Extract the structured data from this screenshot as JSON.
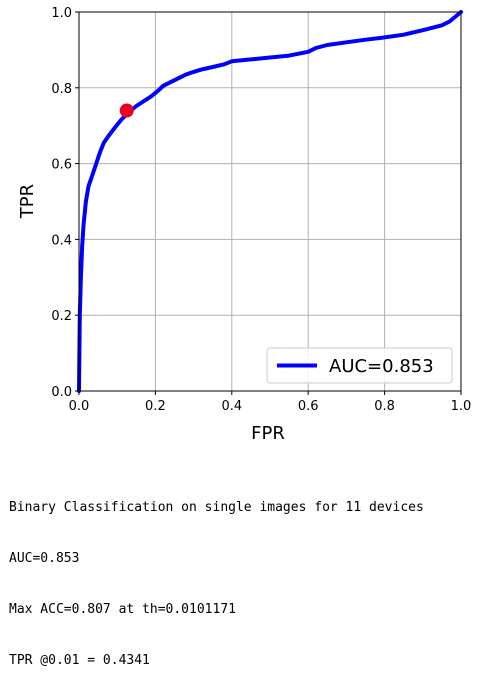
{
  "chart_data": {
    "type": "line",
    "xlabel": "FPR",
    "ylabel": "TPR",
    "xlim": [
      0,
      1
    ],
    "ylim": [
      0,
      1
    ],
    "xticks": [
      0.0,
      0.2,
      0.4,
      0.6,
      0.8,
      1.0
    ],
    "yticks": [
      0.0,
      0.2,
      0.4,
      0.6,
      0.8,
      1.0
    ],
    "xtick_labels": [
      "0.0",
      "0.2",
      "0.4",
      "0.6",
      "0.8",
      "1.0"
    ],
    "ytick_labels": [
      "0.0",
      "0.2",
      "0.4",
      "0.6",
      "0.8",
      "1.0"
    ],
    "grid": true,
    "legend_position": "bottom-right",
    "series": [
      {
        "name": "AUC=0.853",
        "color": "#0000ff",
        "x": [
          0.0,
          0.002,
          0.005,
          0.008,
          0.012,
          0.018,
          0.025,
          0.035,
          0.045,
          0.055,
          0.065,
          0.075,
          0.09,
          0.11,
          0.13,
          0.15,
          0.17,
          0.19,
          0.21,
          0.22,
          0.24,
          0.26,
          0.28,
          0.3,
          0.32,
          0.35,
          0.38,
          0.4,
          0.45,
          0.5,
          0.55,
          0.6,
          0.62,
          0.65,
          0.7,
          0.75,
          0.8,
          0.85,
          0.9,
          0.95,
          0.97,
          1.0
        ],
        "y": [
          0.0,
          0.2,
          0.3,
          0.38,
          0.44,
          0.5,
          0.54,
          0.57,
          0.6,
          0.63,
          0.655,
          0.67,
          0.69,
          0.715,
          0.735,
          0.752,
          0.765,
          0.778,
          0.795,
          0.805,
          0.815,
          0.825,
          0.835,
          0.842,
          0.848,
          0.855,
          0.862,
          0.87,
          0.875,
          0.88,
          0.885,
          0.895,
          0.905,
          0.913,
          0.92,
          0.927,
          0.933,
          0.94,
          0.952,
          0.965,
          0.975,
          1.0
        ]
      }
    ],
    "marker": {
      "x": 0.125,
      "y": 0.74,
      "color": "#e8001c"
    }
  },
  "caption": {
    "line1": "Binary Classification on single images for 11 devices",
    "line2": "AUC=0.853",
    "line3": "Max ACC=0.807 at th=0.0101171",
    "line4": "TPR @0.01 = 0.4341"
  }
}
